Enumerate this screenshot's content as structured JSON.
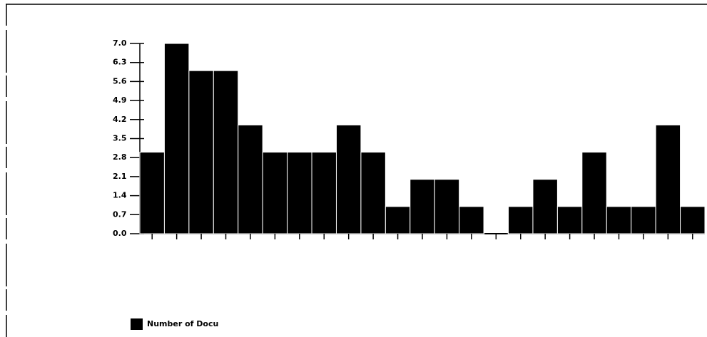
{
  "chart_data": {
    "type": "bar",
    "categories": [
      null,
      null,
      null,
      null,
      null,
      null,
      null,
      null,
      null,
      null,
      null,
      null,
      null,
      null,
      null,
      null,
      null,
      null,
      null,
      null,
      null,
      null,
      null
    ],
    "series": [
      {
        "name": "Number of Docu",
        "color": "#000000",
        "values": [
          3,
          7,
          6,
          6,
          4,
          3,
          3,
          3,
          4,
          3,
          1,
          2,
          2,
          1,
          0,
          1,
          2,
          1,
          3,
          1,
          1,
          4,
          1
        ]
      }
    ],
    "ylim": [
      0,
      7
    ],
    "yticks": [
      {
        "value": 0,
        "label": "0.0"
      },
      0.7,
      1.4,
      2.1,
      2.8,
      3.5,
      4.2,
      4.9,
      5.6,
      6.3,
      {
        "value": 7,
        "label": "7.0"
      }
    ],
    "grid": false
  }
}
